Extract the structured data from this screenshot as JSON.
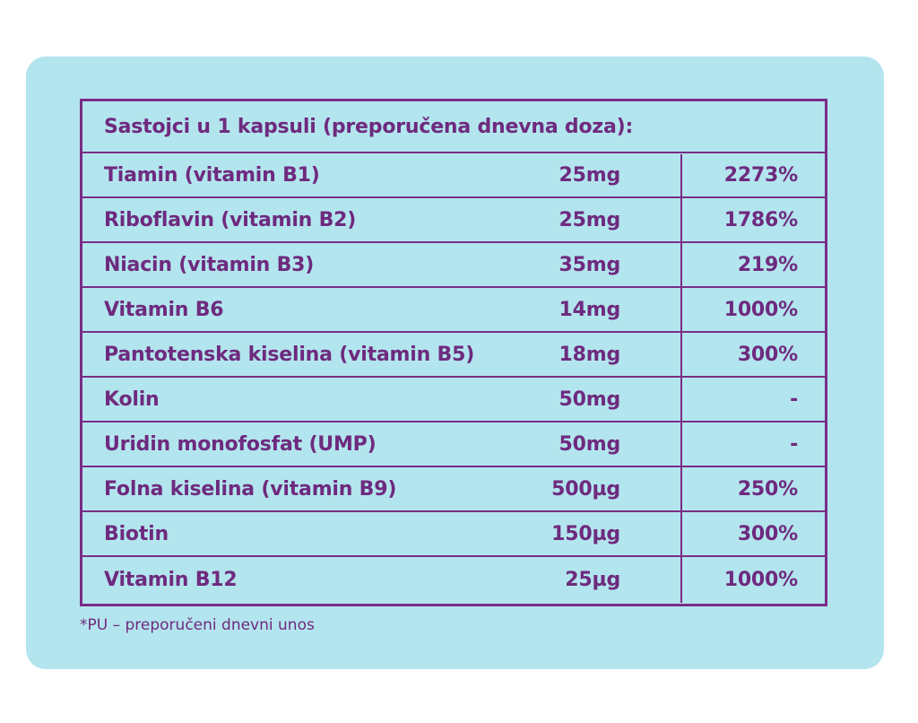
{
  "table": {
    "header": "Sastojci u 1 kapsuli (preporučena dnevna doza):",
    "rows": [
      {
        "name": "Tiamin (vitamin B1)",
        "amount": "25mg",
        "pu": "2273%"
      },
      {
        "name": "Riboflavin (vitamin B2)",
        "amount": "25mg",
        "pu": "1786%"
      },
      {
        "name": "Niacin (vitamin B3)",
        "amount": "35mg",
        "pu": "219%"
      },
      {
        "name": "Vitamin B6",
        "amount": "14mg",
        "pu": "1000%"
      },
      {
        "name": "Pantotenska kiselina (vitamin B5)",
        "amount": "18mg",
        "pu": "300%"
      },
      {
        "name": "Kolin",
        "amount": "50mg",
        "pu": "-"
      },
      {
        "name": "Uridin monofosfat (UMP)",
        "amount": "50mg",
        "pu": "-"
      },
      {
        "name": "Folna kiselina (vitamin B9)",
        "amount": "500µg",
        "pu": "250%"
      },
      {
        "name": "Biotin",
        "amount": "150µg",
        "pu": "300%"
      },
      {
        "name": "Vitamin B12",
        "amount": "25µg",
        "pu": "1000%"
      }
    ]
  },
  "footnote": "*PU – preporučeni dnevni unos",
  "colors": {
    "background_card": "#b3e5ee",
    "text_purple": "#6e2a7e",
    "border_purple": "#7a2d86"
  }
}
